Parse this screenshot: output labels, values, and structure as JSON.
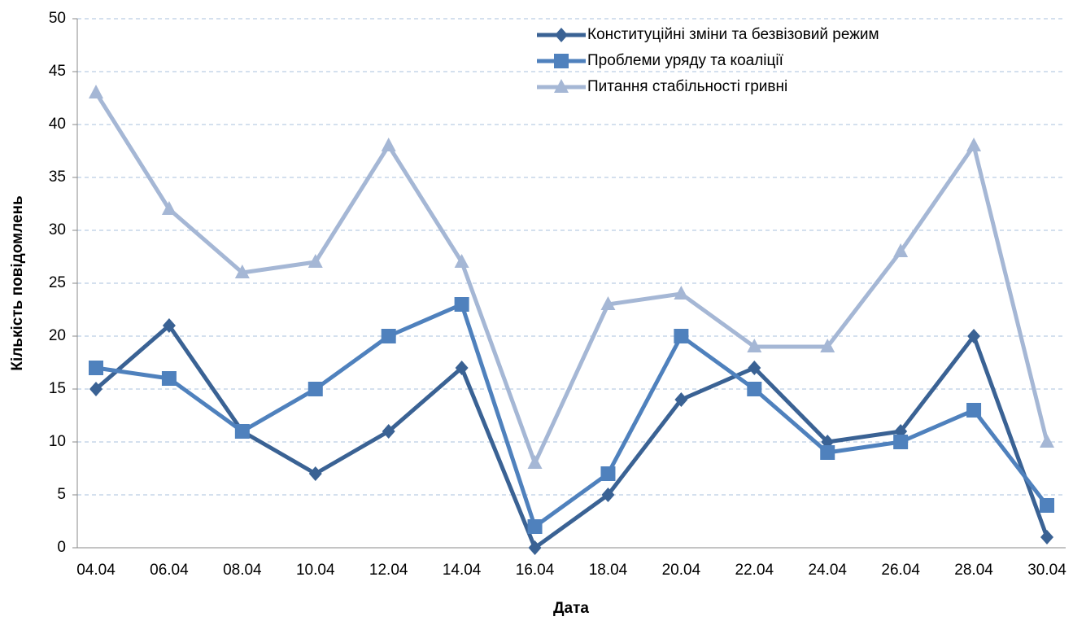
{
  "chart_data": {
    "type": "line",
    "x_label": "Дата",
    "y_label": "Кількість повідомлень",
    "categories": [
      "04.04",
      "06.04",
      "08.04",
      "10.04",
      "12.04",
      "14.04",
      "16.04",
      "18.04",
      "20.04",
      "22.04",
      "24.04",
      "26.04",
      "28.04",
      "30.04"
    ],
    "series": [
      {
        "name": "Конституційні зміни та безвізовий режим",
        "color": "#3a6294",
        "marker": "diamond",
        "values": [
          15,
          21,
          11,
          7,
          11,
          17,
          0,
          5,
          14,
          17,
          10,
          11,
          20,
          1
        ]
      },
      {
        "name": "Проблеми уряду та коаліції",
        "color": "#4f81bd",
        "marker": "square",
        "values": [
          17,
          16,
          11,
          15,
          20,
          23,
          2,
          7,
          20,
          15,
          9,
          10,
          13,
          4
        ]
      },
      {
        "name": "Питання стабільності гривні",
        "color": "#a5b7d5",
        "marker": "triangle",
        "values": [
          43,
          32,
          26,
          27,
          38,
          27,
          8,
          23,
          24,
          19,
          19,
          28,
          38,
          10
        ]
      }
    ],
    "ylim": [
      0,
      50
    ],
    "yticks": [
      0,
      5,
      10,
      15,
      20,
      25,
      30,
      35,
      40,
      45,
      50
    ],
    "grid": true,
    "legend": "top-right"
  }
}
